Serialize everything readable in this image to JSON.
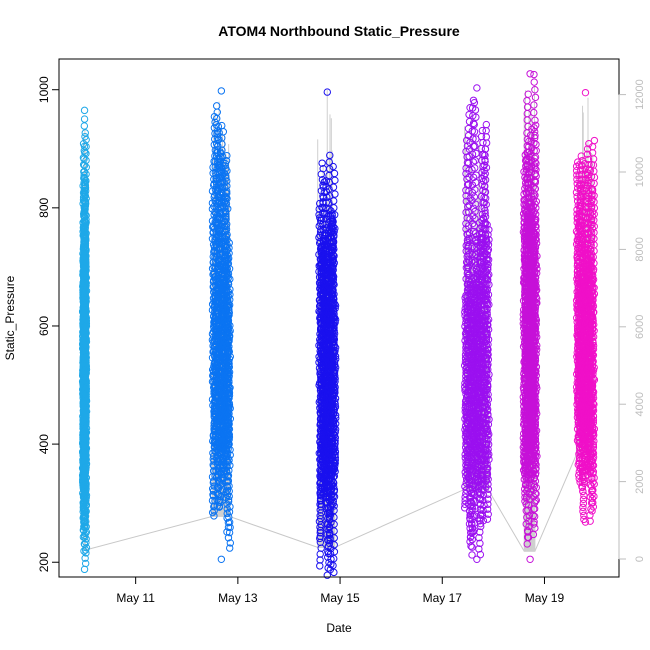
{
  "chart_data": {
    "type": "scatter",
    "title": "ATOM4 Northbound Static_Pressure",
    "xlabel": "Date",
    "ylabel": "Static_Pressure",
    "xlim": [
      "2023-05-09T12:00",
      "2023-05-20T11:00"
    ],
    "ylim": [
      175,
      1052
    ],
    "x_ticks": [
      "May 11",
      "May 13",
      "May 15",
      "May 17",
      "May 19"
    ],
    "y_ticks": [
      200,
      400,
      600,
      800,
      1000
    ],
    "right_axis": {
      "ylim": [
        -465,
        12920
      ],
      "ticks": [
        0,
        2000,
        4000,
        6000,
        8000,
        10000,
        12000
      ],
      "color": "#bdbdbd"
    },
    "grid": false,
    "legend": "none",
    "series": [
      {
        "color": "#1fa8e8",
        "x_range": [
          "2023-05-09T23:30",
          "2023-05-10T00:30"
        ],
        "y_range": [
          188,
          965
        ],
        "trace_start": "2023-05-10T00:00",
        "trace_end": "2023-05-10T00:15",
        "trace_values": [
          230,
          11200
        ]
      },
      {
        "color": "#0b74f2",
        "x_range": [
          "2023-05-12T12:30",
          "2023-05-12T20:00"
        ],
        "y_range": [
          205,
          998
        ],
        "trace_start": "2023-05-12T12:00",
        "trace_end": "2023-05-12T20:00",
        "trace_values": [
          1100,
          12200
        ]
      },
      {
        "color": "#1a11ee",
        "x_range": [
          "2023-05-14T14:30",
          "2023-05-14T21:30"
        ],
        "y_range": [
          178,
          996
        ],
        "trace_start": "2023-05-14T13:30",
        "trace_end": "2023-05-14T21:30",
        "trace_values": [
          300,
          12600
        ]
      },
      {
        "color": "#9b10f0",
        "x_range": [
          "2023-05-17T11:00",
          "2023-05-17T21:30"
        ],
        "y_range": [
          205,
          1003
        ],
        "trace_start": "2023-05-17T10:30",
        "trace_end": "2023-05-17T21:30",
        "trace_values": [
          1800,
          12200
        ]
      },
      {
        "color": "#c611d8",
        "x_range": [
          "2023-05-18T14:30",
          "2023-05-18T20:00"
        ],
        "y_range": [
          205,
          1027
        ],
        "trace_start": "2023-05-18T14:30",
        "trace_end": "2023-05-18T19:30",
        "trace_values": [
          200,
          12500
        ]
      },
      {
        "color": "#f010c8",
        "x_range": [
          "2023-05-19T15:30",
          "2023-05-19T23:00"
        ],
        "y_range": [
          268,
          995
        ],
        "trace_start": "2023-05-19T15:00",
        "trace_end": "2023-05-19T23:00",
        "trace_values": [
          2700,
          12000
        ]
      }
    ]
  }
}
